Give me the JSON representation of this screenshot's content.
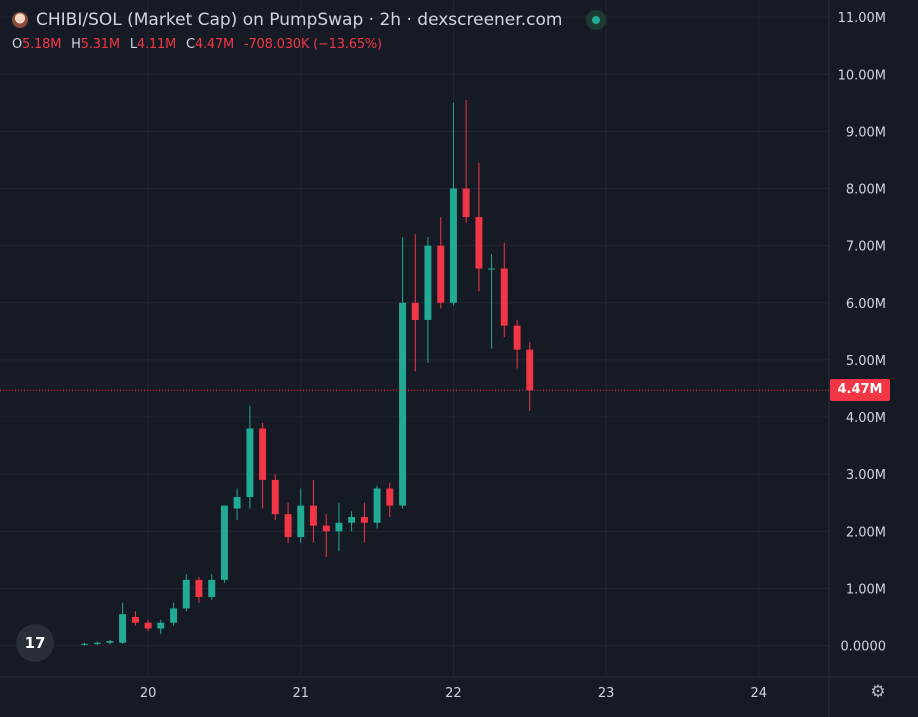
{
  "header": {
    "title": "CHIBI/SOL (Market Cap) on PumpSwap · 2h · dexscreener.com",
    "icon": "token-avatar-icon",
    "status_icon": "live-dot-icon",
    "ohlc": {
      "o_label": "O",
      "o_value": "5.18M",
      "h_label": "H",
      "h_value": "5.31M",
      "l_label": "L",
      "l_value": "4.11M",
      "c_label": "C",
      "c_value": "4.47M",
      "change": "-708.030K (−13.65%)"
    }
  },
  "logo": {
    "text": "17",
    "icon": "tradingview-logo-icon"
  },
  "settings": {
    "icon": "gear-icon",
    "glyph": "⚙"
  },
  "current_price_label": "4.47M",
  "chart_data": {
    "type": "candlestick",
    "title": "CHIBI/SOL (Market Cap) on PumpSwap · 2h · dexscreener.com",
    "ylim": [
      -0.55,
      11.3
    ],
    "xlim": [
      19.03,
      24.46
    ],
    "y_ticks": [
      {
        "value": 0,
        "label": "0.0000"
      },
      {
        "value": 1,
        "label": "1.00M"
      },
      {
        "value": 2,
        "label": "2.00M"
      },
      {
        "value": 3,
        "label": "3.00M"
      },
      {
        "value": 4,
        "label": "4.00M"
      },
      {
        "value": 5,
        "label": "5.00M"
      },
      {
        "value": 6,
        "label": "6.00M"
      },
      {
        "value": 7,
        "label": "7.00M"
      },
      {
        "value": 8,
        "label": "8.00M"
      },
      {
        "value": 9,
        "label": "9.00M"
      },
      {
        "value": 10,
        "label": "10.00M"
      },
      {
        "value": 11,
        "label": "11.00M"
      }
    ],
    "x_ticks": [
      {
        "value": 20,
        "label": "20"
      },
      {
        "value": 21,
        "label": "21"
      },
      {
        "value": 22,
        "label": "22"
      },
      {
        "value": 23,
        "label": "23"
      },
      {
        "value": 24,
        "label": "24"
      }
    ],
    "grid": true,
    "current_price": 4.47,
    "colors": {
      "up": "#22ab94",
      "down": "#f23645",
      "grid": "#232632",
      "axis_text": "#d1d4dc",
      "background": "#161a25"
    },
    "candle_width_days": 0.0583,
    "candles": [
      {
        "t": 19.583,
        "o": 0.02,
        "h": 0.05,
        "l": 0.0,
        "c": 0.03
      },
      {
        "t": 19.667,
        "o": 0.03,
        "h": 0.07,
        "l": 0.01,
        "c": 0.05
      },
      {
        "t": 19.75,
        "o": 0.05,
        "h": 0.1,
        "l": 0.02,
        "c": 0.08
      },
      {
        "t": 19.833,
        "o": 0.05,
        "h": 0.75,
        "l": 0.03,
        "c": 0.55
      },
      {
        "t": 19.917,
        "o": 0.5,
        "h": 0.6,
        "l": 0.35,
        "c": 0.4
      },
      {
        "t": 20.0,
        "o": 0.4,
        "h": 0.45,
        "l": 0.25,
        "c": 0.3
      },
      {
        "t": 20.083,
        "o": 0.3,
        "h": 0.45,
        "l": 0.2,
        "c": 0.4
      },
      {
        "t": 20.167,
        "o": 0.4,
        "h": 0.75,
        "l": 0.35,
        "c": 0.65
      },
      {
        "t": 20.25,
        "o": 0.65,
        "h": 1.25,
        "l": 0.6,
        "c": 1.15
      },
      {
        "t": 20.333,
        "o": 1.15,
        "h": 1.2,
        "l": 0.75,
        "c": 0.85
      },
      {
        "t": 20.417,
        "o": 0.85,
        "h": 1.25,
        "l": 0.8,
        "c": 1.15
      },
      {
        "t": 20.5,
        "o": 1.15,
        "h": 2.45,
        "l": 1.1,
        "c": 2.45
      },
      {
        "t": 20.583,
        "o": 2.4,
        "h": 2.75,
        "l": 2.2,
        "c": 2.6
      },
      {
        "t": 20.667,
        "o": 2.6,
        "h": 4.2,
        "l": 2.4,
        "c": 3.8
      },
      {
        "t": 20.75,
        "o": 3.8,
        "h": 3.9,
        "l": 2.4,
        "c": 2.9
      },
      {
        "t": 20.833,
        "o": 2.9,
        "h": 3.0,
        "l": 2.2,
        "c": 2.3
      },
      {
        "t": 20.917,
        "o": 2.3,
        "h": 2.5,
        "l": 1.8,
        "c": 1.9
      },
      {
        "t": 21.0,
        "o": 1.9,
        "h": 2.75,
        "l": 1.8,
        "c": 2.45
      },
      {
        "t": 21.083,
        "o": 2.45,
        "h": 2.9,
        "l": 1.8,
        "c": 2.1
      },
      {
        "t": 21.167,
        "o": 2.1,
        "h": 2.3,
        "l": 1.55,
        "c": 2.0
      },
      {
        "t": 21.25,
        "o": 2.0,
        "h": 2.5,
        "l": 1.65,
        "c": 2.15
      },
      {
        "t": 21.333,
        "o": 2.15,
        "h": 2.35,
        "l": 2.0,
        "c": 2.25
      },
      {
        "t": 21.417,
        "o": 2.25,
        "h": 2.5,
        "l": 1.8,
        "c": 2.15
      },
      {
        "t": 21.5,
        "o": 2.15,
        "h": 2.8,
        "l": 2.05,
        "c": 2.75
      },
      {
        "t": 21.583,
        "o": 2.75,
        "h": 2.85,
        "l": 2.25,
        "c": 2.45
      },
      {
        "t": 21.667,
        "o": 2.45,
        "h": 7.15,
        "l": 2.4,
        "c": 6.0
      },
      {
        "t": 21.75,
        "o": 6.0,
        "h": 7.2,
        "l": 4.8,
        "c": 5.7
      },
      {
        "t": 21.833,
        "o": 5.7,
        "h": 7.15,
        "l": 4.95,
        "c": 7.0
      },
      {
        "t": 21.917,
        "o": 7.0,
        "h": 7.5,
        "l": 5.9,
        "c": 6.0
      },
      {
        "t": 22.0,
        "o": 6.0,
        "h": 9.5,
        "l": 5.95,
        "c": 8.0
      },
      {
        "t": 22.083,
        "o": 8.0,
        "h": 9.55,
        "l": 7.4,
        "c": 7.5
      },
      {
        "t": 22.167,
        "o": 7.5,
        "h": 8.45,
        "l": 6.2,
        "c": 6.6
      },
      {
        "t": 22.25,
        "o": 6.6,
        "h": 6.85,
        "l": 5.2,
        "c": 6.6
      },
      {
        "t": 22.333,
        "o": 6.6,
        "h": 7.05,
        "l": 5.4,
        "c": 5.6
      },
      {
        "t": 22.417,
        "o": 5.6,
        "h": 5.7,
        "l": 4.85,
        "c": 5.18
      },
      {
        "t": 22.5,
        "o": 5.18,
        "h": 5.31,
        "l": 4.11,
        "c": 4.47
      }
    ]
  }
}
